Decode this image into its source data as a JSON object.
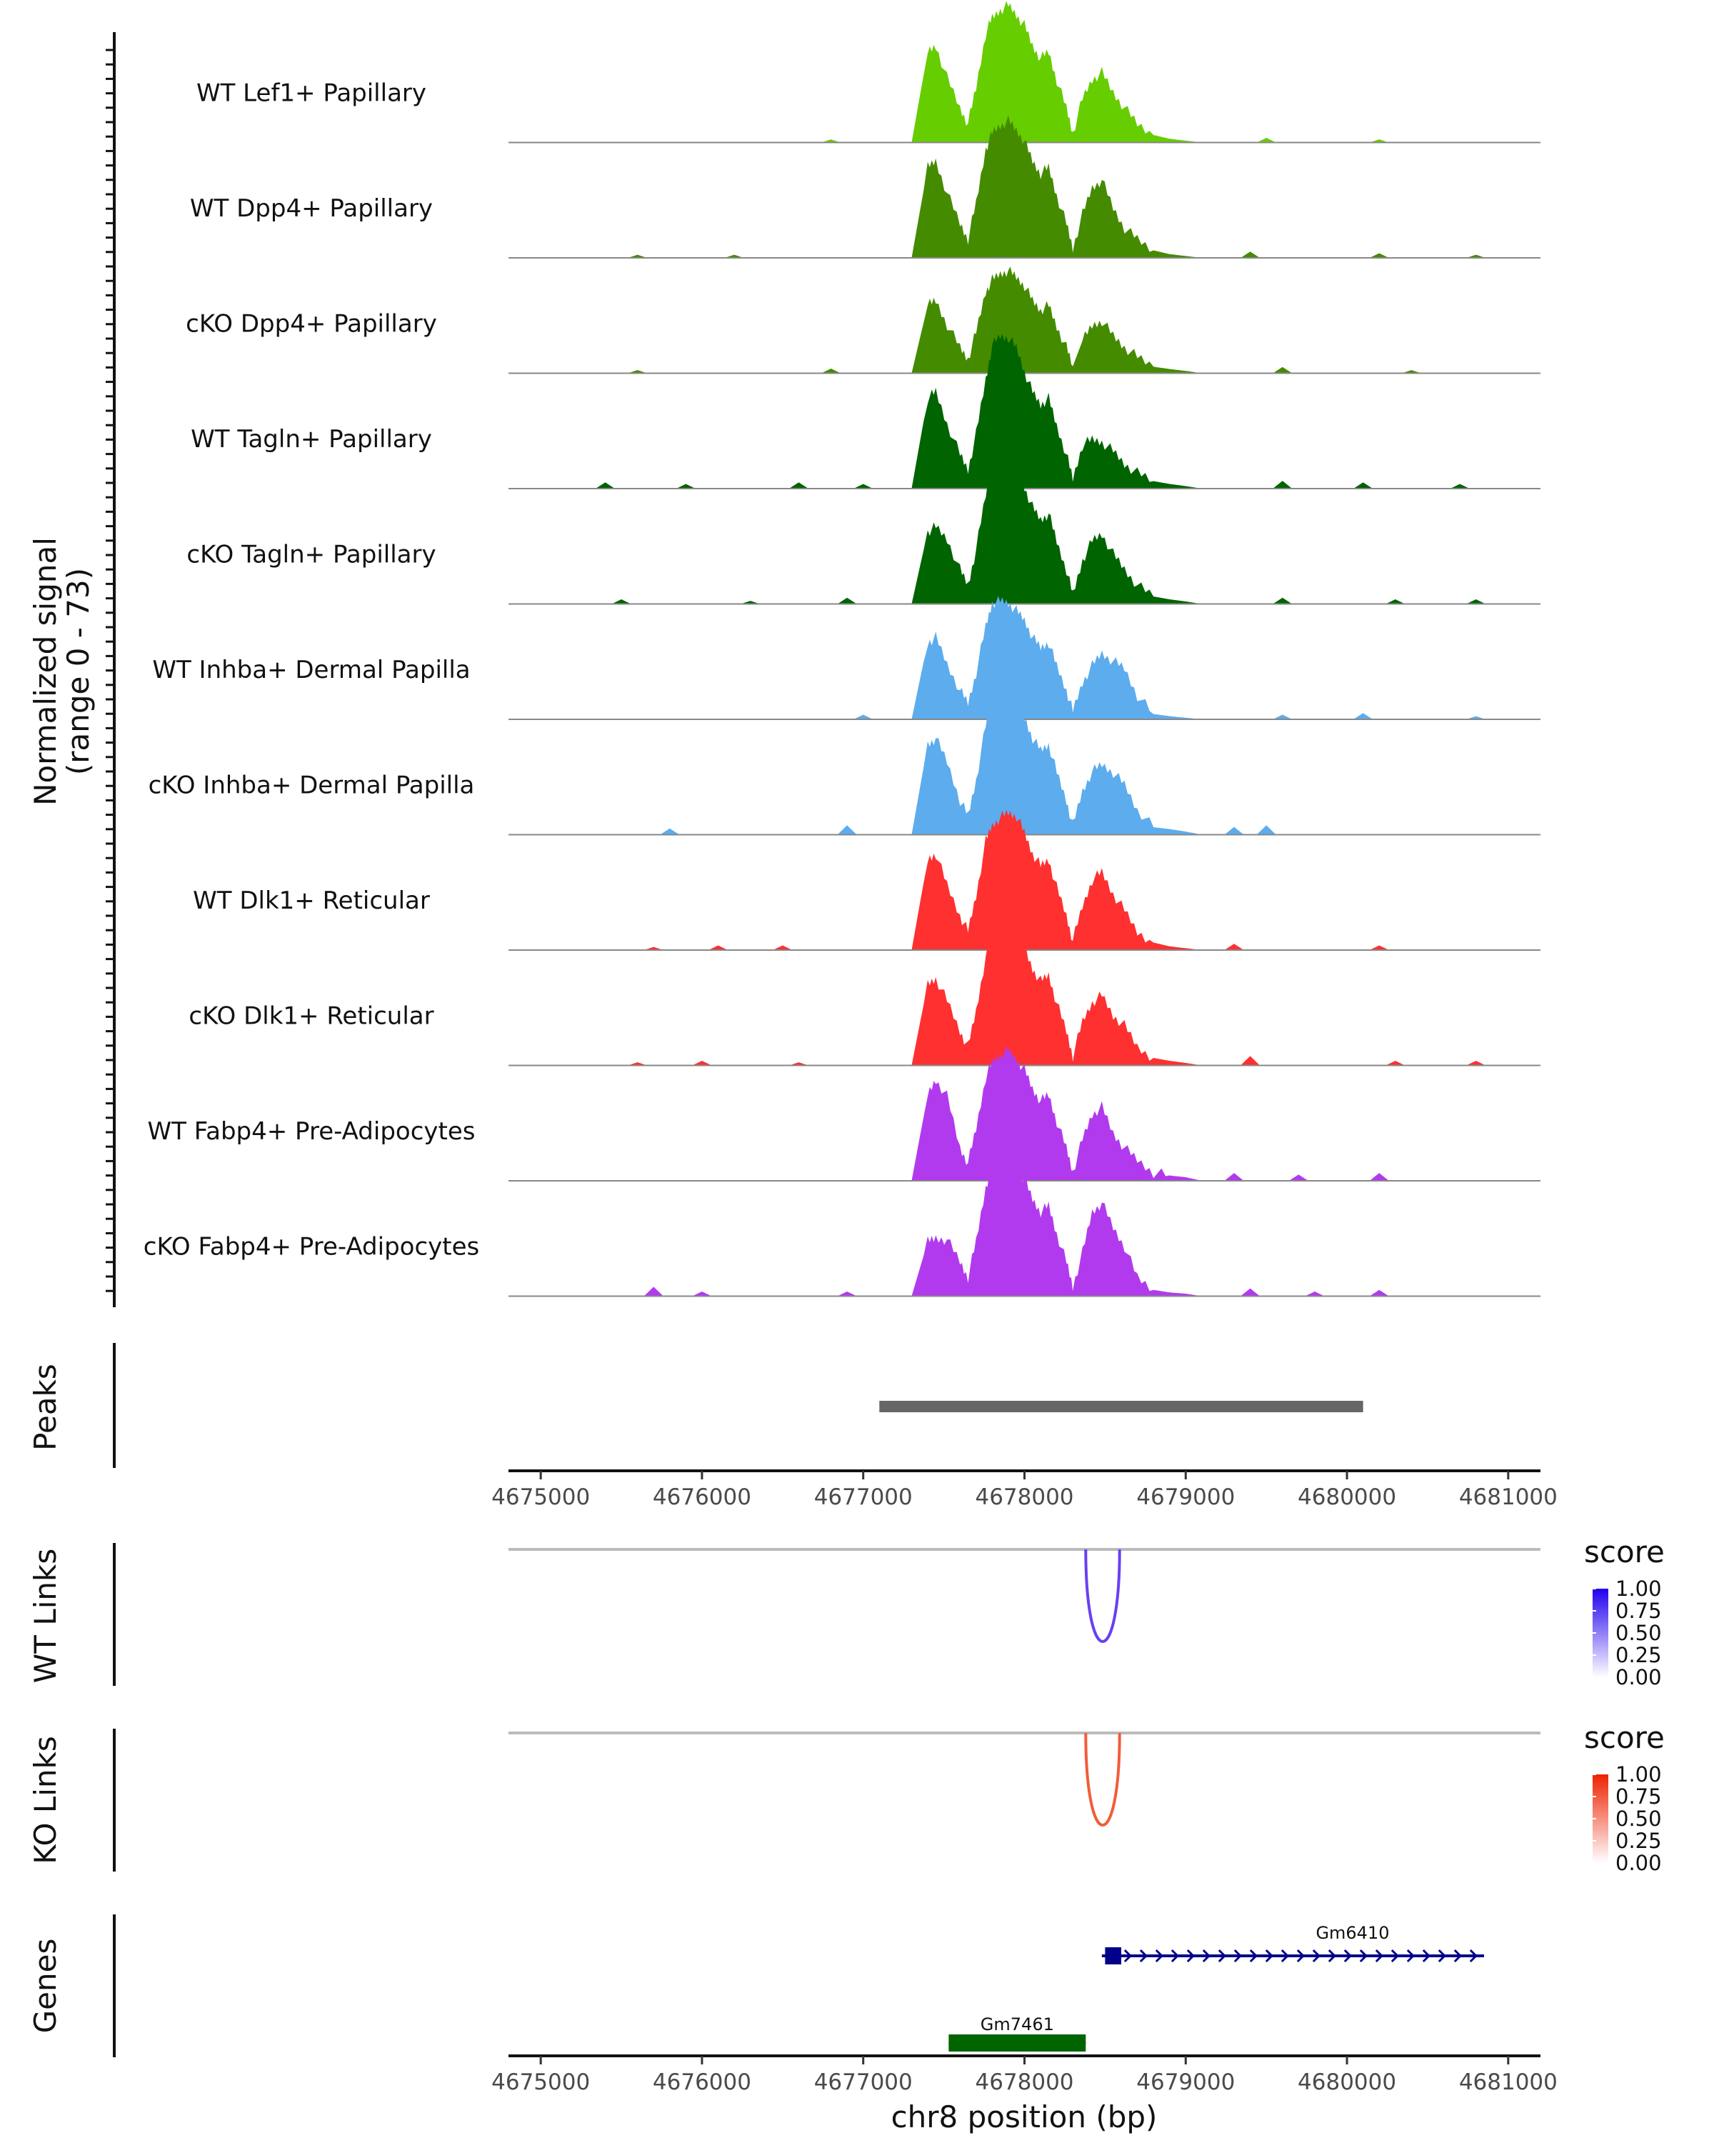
{
  "chart_data": {
    "type": "area",
    "title": "",
    "chromosome": "chr8",
    "xlabel": "chr8 position (bp)",
    "xlim": [
      4674800,
      4681200
    ],
    "xticks": [
      4675000,
      4676000,
      4677000,
      4678000,
      4679000,
      4680000,
      4681000
    ],
    "xtick_labels": [
      "4675000",
      "4676000",
      "4677000",
      "4678000",
      "4679000",
      "4680000",
      "4681000"
    ],
    "coverage_ylabel_line1": "Normalized signal",
    "coverage_ylabel_line2": "(range 0 - 73)",
    "coverage_range": [
      0,
      73
    ],
    "peak_template": {
      "x": [
        4677080,
        4677200,
        4677300,
        4677400,
        4677450,
        4677520,
        4677600,
        4677650,
        4677700,
        4677760,
        4677800,
        4677850,
        4677900,
        4677950,
        4678000,
        4678050,
        4678100,
        4678150,
        4678200,
        4678260,
        4678300,
        4678360,
        4678420,
        4678480,
        4678550,
        4678620,
        4678700,
        4678800,
        4678900,
        4679000,
        4679100
      ],
      "values": [
        0,
        4,
        40,
        58,
        62,
        52,
        22,
        12,
        35,
        70,
        80,
        85,
        88,
        82,
        75,
        62,
        54,
        58,
        40,
        22,
        6,
        28,
        45,
        50,
        40,
        32,
        20,
        8,
        6,
        4,
        0
      ]
    },
    "series": [
      {
        "name": "WT Lef1+ Papillary",
        "color": "#66CD00",
        "scale": 1.0,
        "shift": [
          0,
          0,
          0,
          1.0,
          1.0,
          0.8,
          1,
          1,
          1,
          1,
          1,
          1,
          1.0,
          1,
          1,
          1.0,
          1.0,
          1.0,
          1,
          1,
          1,
          1,
          0.9,
          0.9,
          0.8,
          0.7,
          0.6,
          0.6,
          0.4,
          0.3,
          0
        ],
        "noise": [
          [
            4676800,
            2
          ],
          [
            4679500,
            3
          ],
          [
            4680200,
            2
          ]
        ]
      },
      {
        "name": "WT Dpp4+ Papillary",
        "color": "#458B00",
        "scale": 1.0,
        "shift": [
          0,
          0,
          0,
          1.0,
          1.0,
          0.8,
          1,
          1,
          1,
          1,
          1,
          1,
          1.0,
          1,
          1,
          1.0,
          1.0,
          1.0,
          1,
          1,
          1,
          1,
          1.0,
          1.0,
          0.8,
          0.6,
          0.6,
          0.6,
          0.4,
          0.3,
          0
        ],
        "noise": [
          [
            4675600,
            2
          ],
          [
            4676200,
            2
          ],
          [
            4679400,
            4
          ],
          [
            4680200,
            3
          ],
          [
            4680800,
            2
          ]
        ]
      },
      {
        "name": "cKO Dpp4+ Papillary",
        "color": "#458B00",
        "scale": 0.75,
        "shift": [
          0,
          0,
          0,
          1.0,
          1.0,
          0.8,
          1,
          1,
          1,
          1,
          1,
          1,
          1.0,
          1,
          1,
          1.0,
          1.0,
          1.0,
          1,
          1,
          1,
          1,
          0.9,
          0.9,
          0.8,
          0.7,
          0.7,
          0.7,
          0.6,
          0.5,
          0
        ],
        "noise": [
          [
            4675600,
            2
          ],
          [
            4676800,
            3
          ],
          [
            4679600,
            4
          ],
          [
            4680400,
            2
          ]
        ]
      },
      {
        "name": "WT Tagln+ Papillary",
        "color": "#006400",
        "scale": 1.0,
        "shift": [
          0,
          0,
          0,
          1.0,
          1.0,
          0.8,
          1,
          1,
          1,
          1,
          1.15,
          1.15,
          1.1,
          1.1,
          1,
          1.0,
          1.0,
          1.0,
          1,
          1,
          1,
          1,
          0.7,
          0.6,
          0.6,
          0.5,
          0.5,
          0.6,
          0.5,
          0.4,
          0
        ],
        "noise": [
          [
            4675400,
            4
          ],
          [
            4675900,
            3
          ],
          [
            4676600,
            4
          ],
          [
            4677000,
            3
          ],
          [
            4679600,
            5
          ],
          [
            4680100,
            4
          ],
          [
            4680700,
            3
          ]
        ]
      },
      {
        "name": "cKO Tagln+ Papillary",
        "color": "#006400",
        "scale": 1.0,
        "shift": [
          0,
          0,
          0,
          0.8,
          0.8,
          0.8,
          1,
          1,
          1,
          1,
          1.1,
          1.1,
          1.1,
          1.1,
          1,
          1.0,
          1.0,
          1.0,
          1,
          1,
          1,
          1,
          0.9,
          0.9,
          0.8,
          0.7,
          0.6,
          0.6,
          0.5,
          0.4,
          0
        ],
        "noise": [
          [
            4675500,
            3
          ],
          [
            4676300,
            2
          ],
          [
            4676900,
            4
          ],
          [
            4679600,
            4
          ],
          [
            4680300,
            3
          ],
          [
            4680800,
            3
          ]
        ]
      },
      {
        "name": "WT Inhba+ Dermal Papilla",
        "color": "#5CACEE",
        "scale": 0.85,
        "shift": [
          0,
          0,
          0,
          1.0,
          1.0,
          0.8,
          1,
          1,
          1,
          1,
          1.1,
          1.05,
          1.0,
          1.0,
          1,
          1.0,
          1.0,
          1.0,
          1,
          1,
          1,
          1,
          0.9,
          1.0,
          1.1,
          1.2,
          0.9,
          0.5,
          0.4,
          0.3,
          0
        ],
        "noise": [
          [
            4677000,
            3
          ],
          [
            4679600,
            3
          ],
          [
            4680100,
            4
          ],
          [
            4680800,
            2
          ]
        ]
      },
      {
        "name": "cKO Inhba+ Dermal Papilla",
        "color": "#5CACEE",
        "scale": 1.0,
        "shift": [
          0,
          0,
          0,
          1.0,
          1.0,
          0.9,
          1,
          1,
          1,
          1,
          1.1,
          1.15,
          1.0,
          1.0,
          1,
          1.0,
          1.0,
          1.0,
          1,
          1,
          1,
          1,
          0.9,
          0.9,
          1.0,
          1.0,
          0.8,
          0.6,
          0.6,
          0.5,
          0
        ],
        "noise": [
          [
            4675800,
            4
          ],
          [
            4676900,
            6
          ],
          [
            4679300,
            5
          ],
          [
            4679500,
            6
          ]
        ]
      },
      {
        "name": "WT Dlk1+ Reticular",
        "color": "#FF3030",
        "scale": 1.0,
        "shift": [
          0,
          0,
          0,
          1.0,
          1.0,
          0.8,
          1,
          1,
          1,
          1,
          1,
          1,
          1.0,
          1.05,
          1,
          1.0,
          1.0,
          1.0,
          1,
          1,
          1,
          1,
          1.0,
          1.0,
          0.9,
          0.8,
          0.6,
          0.6,
          0.4,
          0.3,
          0
        ],
        "noise": [
          [
            4675700,
            2
          ],
          [
            4676100,
            3
          ],
          [
            4676500,
            3
          ],
          [
            4679300,
            4
          ],
          [
            4680200,
            3
          ]
        ]
      },
      {
        "name": "cKO Dlk1+ Reticular",
        "color": "#FF3030",
        "scale": 1.0,
        "shift": [
          0,
          0,
          0,
          0.9,
          0.9,
          0.8,
          1,
          1,
          1,
          1,
          1,
          1,
          1.0,
          1.0,
          1,
          1.0,
          1.0,
          1.0,
          1,
          1,
          1,
          1,
          0.9,
          0.9,
          0.8,
          0.8,
          0.6,
          0.6,
          0.5,
          0.4,
          0
        ],
        "noise": [
          [
            4675600,
            2
          ],
          [
            4676000,
            3
          ],
          [
            4676600,
            2
          ],
          [
            4679400,
            6
          ],
          [
            4680300,
            3
          ],
          [
            4680800,
            3
          ]
        ]
      },
      {
        "name": "WT Fabp4+ Pre-Adipocytes",
        "color": "#B23AEE",
        "scale": 0.95,
        "shift": [
          0,
          0,
          0,
          1.0,
          1.1,
          1.1,
          1,
          1,
          1,
          1,
          1,
          1,
          1.0,
          1,
          1,
          1.0,
          1.0,
          1.0,
          1,
          1,
          1,
          1,
          1.0,
          1.0,
          0.8,
          0.7,
          0.7,
          0.7,
          0.6,
          0.6,
          0
        ],
        "noise": [
          [
            4679300,
            5
          ],
          [
            4679700,
            4
          ],
          [
            4680200,
            5
          ]
        ]
      },
      {
        "name": "cKO Fabp4+ Pre-Adipocytes",
        "color": "#B23AEE",
        "scale": 1.0,
        "shift": [
          0,
          0,
          0,
          0.6,
          0.6,
          0.7,
          1,
          1,
          1,
          1,
          1.05,
          1.0,
          1.0,
          1,
          1,
          1.0,
          1.0,
          1.0,
          1,
          1,
          1,
          1,
          1.2,
          1.2,
          1.1,
          1.0,
          0.6,
          0.5,
          0.4,
          0.4,
          0
        ],
        "noise": [
          [
            4675700,
            6
          ],
          [
            4676000,
            3
          ],
          [
            4676900,
            3
          ],
          [
            4679400,
            5
          ],
          [
            4679800,
            3
          ],
          [
            4680200,
            4
          ]
        ]
      }
    ],
    "peaks_label": "Peaks",
    "peaks": [
      {
        "start": 4677100,
        "end": 4680100,
        "color": "#666666"
      }
    ],
    "wt_links": {
      "label": "WT Links",
      "start": 4678380,
      "end": 4678590,
      "score": 0.85,
      "color": "#6A3FF0"
    },
    "ko_links": {
      "label": "KO Links",
      "start": 4678380,
      "end": 4678590,
      "score": 0.75,
      "color": "#F25C3A"
    },
    "legends": [
      {
        "title": "score",
        "ticks": [
          "1.00",
          "0.75",
          "0.50",
          "0.25",
          "0.00"
        ],
        "color_low": "#FFFFFF",
        "color_high": "#2200EE"
      },
      {
        "title": "score",
        "ticks": [
          "1.00",
          "0.75",
          "0.50",
          "0.25",
          "0.00"
        ],
        "color_low": "#FFFFFF",
        "color_high": "#EE2200"
      }
    ],
    "genes_label": "Genes",
    "genes": [
      {
        "name": "Gm6410",
        "start": 4678480,
        "end": 4680850,
        "strand": "+",
        "color": "#00008B",
        "exon_start": 4678500,
        "exon_end": 4678600
      },
      {
        "name": "Gm7461",
        "start": 4677530,
        "end": 4678380,
        "strand": "",
        "color": "#006400",
        "exon_start": 4677530,
        "exon_end": 4678380
      }
    ]
  }
}
